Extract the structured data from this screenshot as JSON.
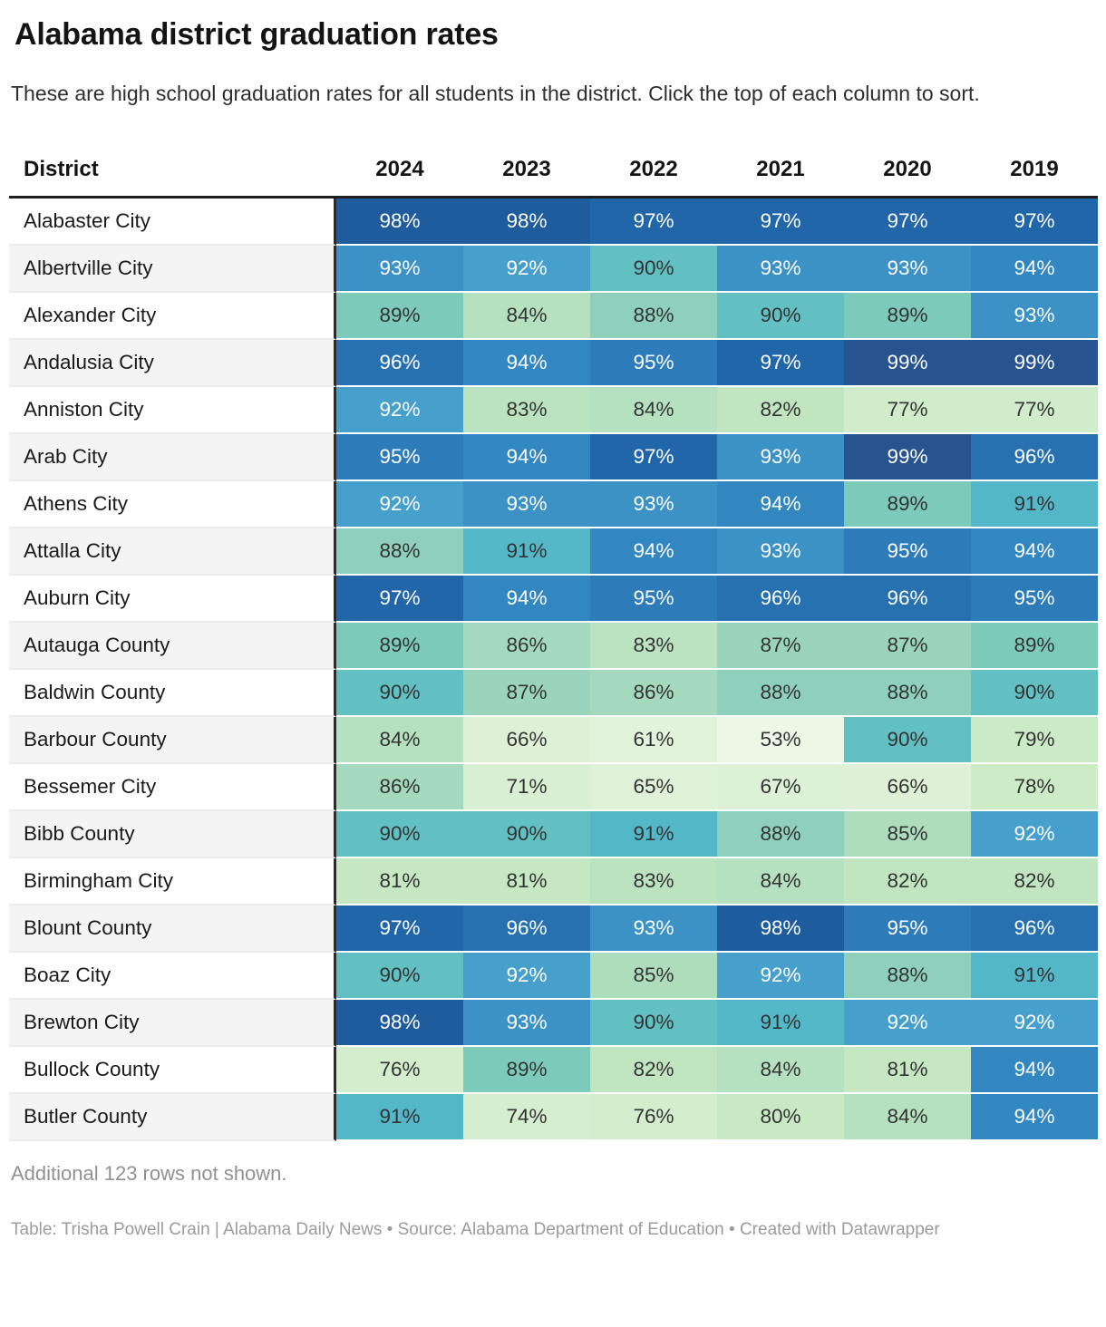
{
  "header": {
    "title": "Alabama district graduation rates",
    "description": "These are high school graduation rates for all students in the district. Click the top of each column to sort."
  },
  "notes": {
    "more_rows": "Additional 123 rows not shown."
  },
  "footer": {
    "caption": "Table: Trisha Powell Crain | Alabama Daily News • Source: Alabama Department of Education • Created with Datawrapper"
  },
  "chart_data": {
    "type": "heatmap",
    "title": "Alabama district graduation rates",
    "row_label_header": "District",
    "columns": [
      "2024",
      "2023",
      "2022",
      "2021",
      "2020",
      "2019"
    ],
    "unit": "%",
    "rows": [
      {
        "district": "Alabaster City",
        "values": [
          98,
          98,
          97,
          97,
          97,
          97
        ]
      },
      {
        "district": "Albertville City",
        "values": [
          93,
          92,
          90,
          93,
          93,
          94
        ]
      },
      {
        "district": "Alexander City",
        "values": [
          89,
          84,
          88,
          90,
          89,
          93
        ]
      },
      {
        "district": "Andalusia City",
        "values": [
          96,
          94,
          95,
          97,
          99,
          99
        ]
      },
      {
        "district": "Anniston City",
        "values": [
          92,
          83,
          84,
          82,
          77,
          77
        ]
      },
      {
        "district": "Arab City",
        "values": [
          95,
          94,
          97,
          93,
          99,
          96
        ]
      },
      {
        "district": "Athens City",
        "values": [
          92,
          93,
          93,
          94,
          89,
          91
        ]
      },
      {
        "district": "Attalla City",
        "values": [
          88,
          91,
          94,
          93,
          95,
          94
        ]
      },
      {
        "district": "Auburn City",
        "values": [
          97,
          94,
          95,
          96,
          96,
          95
        ]
      },
      {
        "district": "Autauga County",
        "values": [
          89,
          86,
          83,
          87,
          87,
          89
        ]
      },
      {
        "district": "Baldwin County",
        "values": [
          90,
          87,
          86,
          88,
          88,
          90
        ]
      },
      {
        "district": "Barbour County",
        "values": [
          84,
          66,
          61,
          53,
          90,
          79
        ]
      },
      {
        "district": "Bessemer City",
        "values": [
          86,
          71,
          65,
          67,
          66,
          78
        ]
      },
      {
        "district": "Bibb County",
        "values": [
          90,
          90,
          91,
          88,
          85,
          92
        ]
      },
      {
        "district": "Birmingham City",
        "values": [
          81,
          81,
          83,
          84,
          82,
          82
        ]
      },
      {
        "district": "Blount County",
        "values": [
          97,
          96,
          93,
          98,
          95,
          96
        ]
      },
      {
        "district": "Boaz City",
        "values": [
          90,
          92,
          85,
          92,
          88,
          91
        ]
      },
      {
        "district": "Brewton City",
        "values": [
          98,
          93,
          90,
          91,
          92,
          92
        ]
      },
      {
        "district": "Bullock County",
        "values": [
          76,
          89,
          82,
          84,
          81,
          94
        ]
      },
      {
        "district": "Butler County",
        "values": [
          91,
          74,
          76,
          80,
          84,
          94
        ]
      }
    ],
    "color_scale": {
      "53": "#edf7e5",
      "61": "#e2f3db",
      "65": "#dff2d8",
      "66": "#def1d7",
      "67": "#ddf1d6",
      "71": "#d9efd3",
      "74": "#d6eed0",
      "76": "#d3edcd",
      "77": "#d0ecca",
      "78": "#ceebc8",
      "79": "#cbeac6",
      "80": "#c8e9c4",
      "81": "#c5e7c2",
      "82": "#c1e5c1",
      "83": "#bce3c0",
      "84": "#b6e1c0",
      "85": "#aeddbe",
      "86": "#a4d9bd",
      "87": "#9ad4bc",
      "88": "#8ed0bb",
      "89": "#7ccaba",
      "90": "#63c0c2",
      "91": "#54b7c8",
      "92": "#47a0cb",
      "93": "#3c92c5",
      "94": "#3287c0",
      "95": "#2d7cb9",
      "96": "#2871b1",
      "97": "#2166a9",
      "98": "#1f5c9d",
      "99": "#27538f"
    },
    "light_text_threshold": 92,
    "colors": {
      "light_text": "#ffffff",
      "dark_text": "#333333",
      "header_rule": "#1f1f1f",
      "column_divider": "#2c2c2c",
      "zebra_stripe": "#f4f4f4"
    },
    "legend_position": "none",
    "grid": false
  }
}
